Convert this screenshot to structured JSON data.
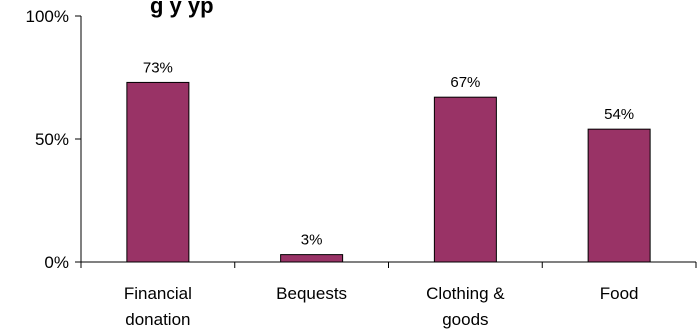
{
  "chart_data": {
    "type": "bar",
    "title": "",
    "categories": [
      [
        "Financial",
        "donation"
      ],
      [
        "Bequests"
      ],
      [
        "Clothing &",
        "goods"
      ],
      [
        "Food"
      ]
    ],
    "values": [
      73,
      3,
      67,
      54
    ],
    "data_labels": [
      "73%",
      "3%",
      "67%",
      "54%"
    ],
    "xlabel": "",
    "ylabel": "",
    "ylim": [
      0,
      100
    ],
    "yticks": [
      0,
      50,
      100
    ],
    "ytick_labels": [
      "0%",
      "50%",
      "100%"
    ],
    "grid": false,
    "bar_color": "#993366"
  },
  "visible_title_fragment": "g            y  yp"
}
